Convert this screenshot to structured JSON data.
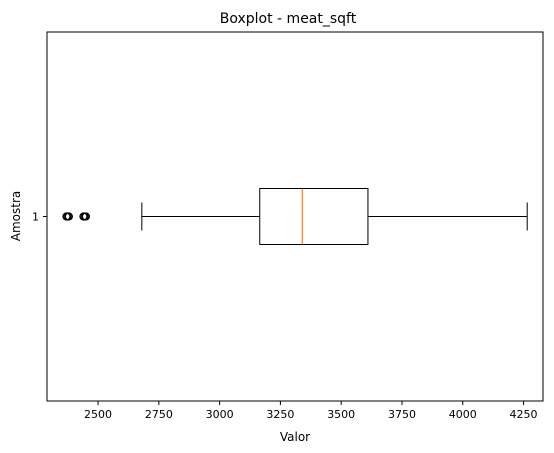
{
  "chart_data": {
    "type": "boxplot",
    "orientation": "horizontal",
    "title": "Boxplot - meat_sqft",
    "xlabel": "Valor",
    "ylabel": "Amostra",
    "xlim": [
      2290,
      4330
    ],
    "xticks": [
      2500,
      2750,
      3000,
      3250,
      3500,
      3750,
      4000,
      4250
    ],
    "categories": [
      "1"
    ],
    "series": [
      {
        "whisker_low": 2680,
        "q1": 3165,
        "median": 3340,
        "q3": 3610,
        "whisker_high": 4265,
        "outliers": [
          2370,
          2375,
          2380,
          2440,
          2445,
          2450
        ]
      }
    ],
    "grid": false,
    "colors": {
      "box": "#000000",
      "median": "#ff7f0e",
      "whisker": "#000000",
      "outlier": "#000000"
    }
  }
}
